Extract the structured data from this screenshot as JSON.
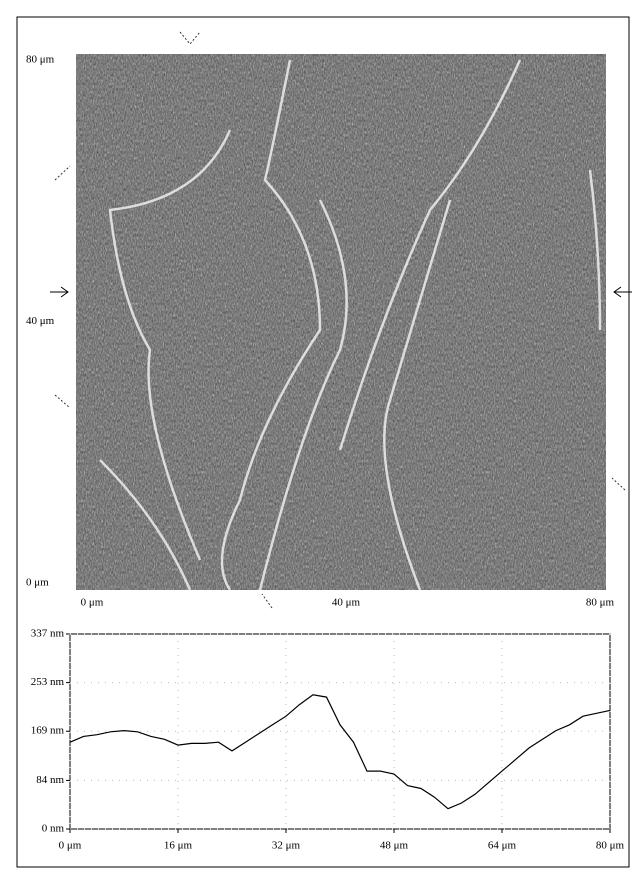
{
  "chart_data": [
    {
      "type": "image",
      "xlim": [
        0,
        80
      ],
      "ylim": [
        0,
        80
      ],
      "xticks": [
        {
          "value": 0,
          "label": "0 μm"
        },
        {
          "value": 40,
          "label": "40 μm"
        },
        {
          "value": 80,
          "label": "80 μm"
        }
      ],
      "yticks": [
        {
          "value": 0,
          "label": "0 μm"
        },
        {
          "value": 40,
          "label": "40 μm"
        },
        {
          "value": 80,
          "label": "80 μm"
        }
      ]
    },
    {
      "type": "line",
      "color": "#000000",
      "grid": true,
      "x": [
        0,
        2,
        4,
        6,
        8,
        10,
        12,
        14,
        16,
        18,
        20,
        22,
        24,
        26,
        28,
        30,
        32,
        34,
        36,
        38,
        40,
        42,
        44,
        46,
        48,
        50,
        52,
        54,
        56,
        58,
        60,
        62,
        64,
        66,
        68,
        70,
        72,
        74,
        76,
        78,
        80
      ],
      "values": [
        150,
        160,
        163,
        168,
        170,
        168,
        160,
        155,
        145,
        148,
        148,
        150,
        135,
        150,
        165,
        180,
        195,
        215,
        232,
        228,
        180,
        150,
        100,
        100,
        95,
        75,
        70,
        55,
        35,
        45,
        60,
        80,
        100,
        120,
        140,
        155,
        170,
        180,
        195,
        200,
        205
      ],
      "xlim": [
        0,
        80
      ],
      "ylim": [
        0,
        337
      ],
      "xticks": [
        {
          "value": 0,
          "label": "0 μm"
        },
        {
          "value": 16,
          "label": "16 μm"
        },
        {
          "value": 32,
          "label": "32 μm"
        },
        {
          "value": 48,
          "label": "48 μm"
        },
        {
          "value": 64,
          "label": "64 μm"
        },
        {
          "value": 80,
          "label": "80 μm"
        }
      ],
      "yticks": [
        {
          "value": 0,
          "label": "0 nm"
        },
        {
          "value": 84,
          "label": "84 nm"
        },
        {
          "value": 169,
          "label": "169 nm"
        },
        {
          "value": 253,
          "label": "253 nm"
        },
        {
          "value": 337,
          "label": "337 nm"
        }
      ]
    }
  ]
}
